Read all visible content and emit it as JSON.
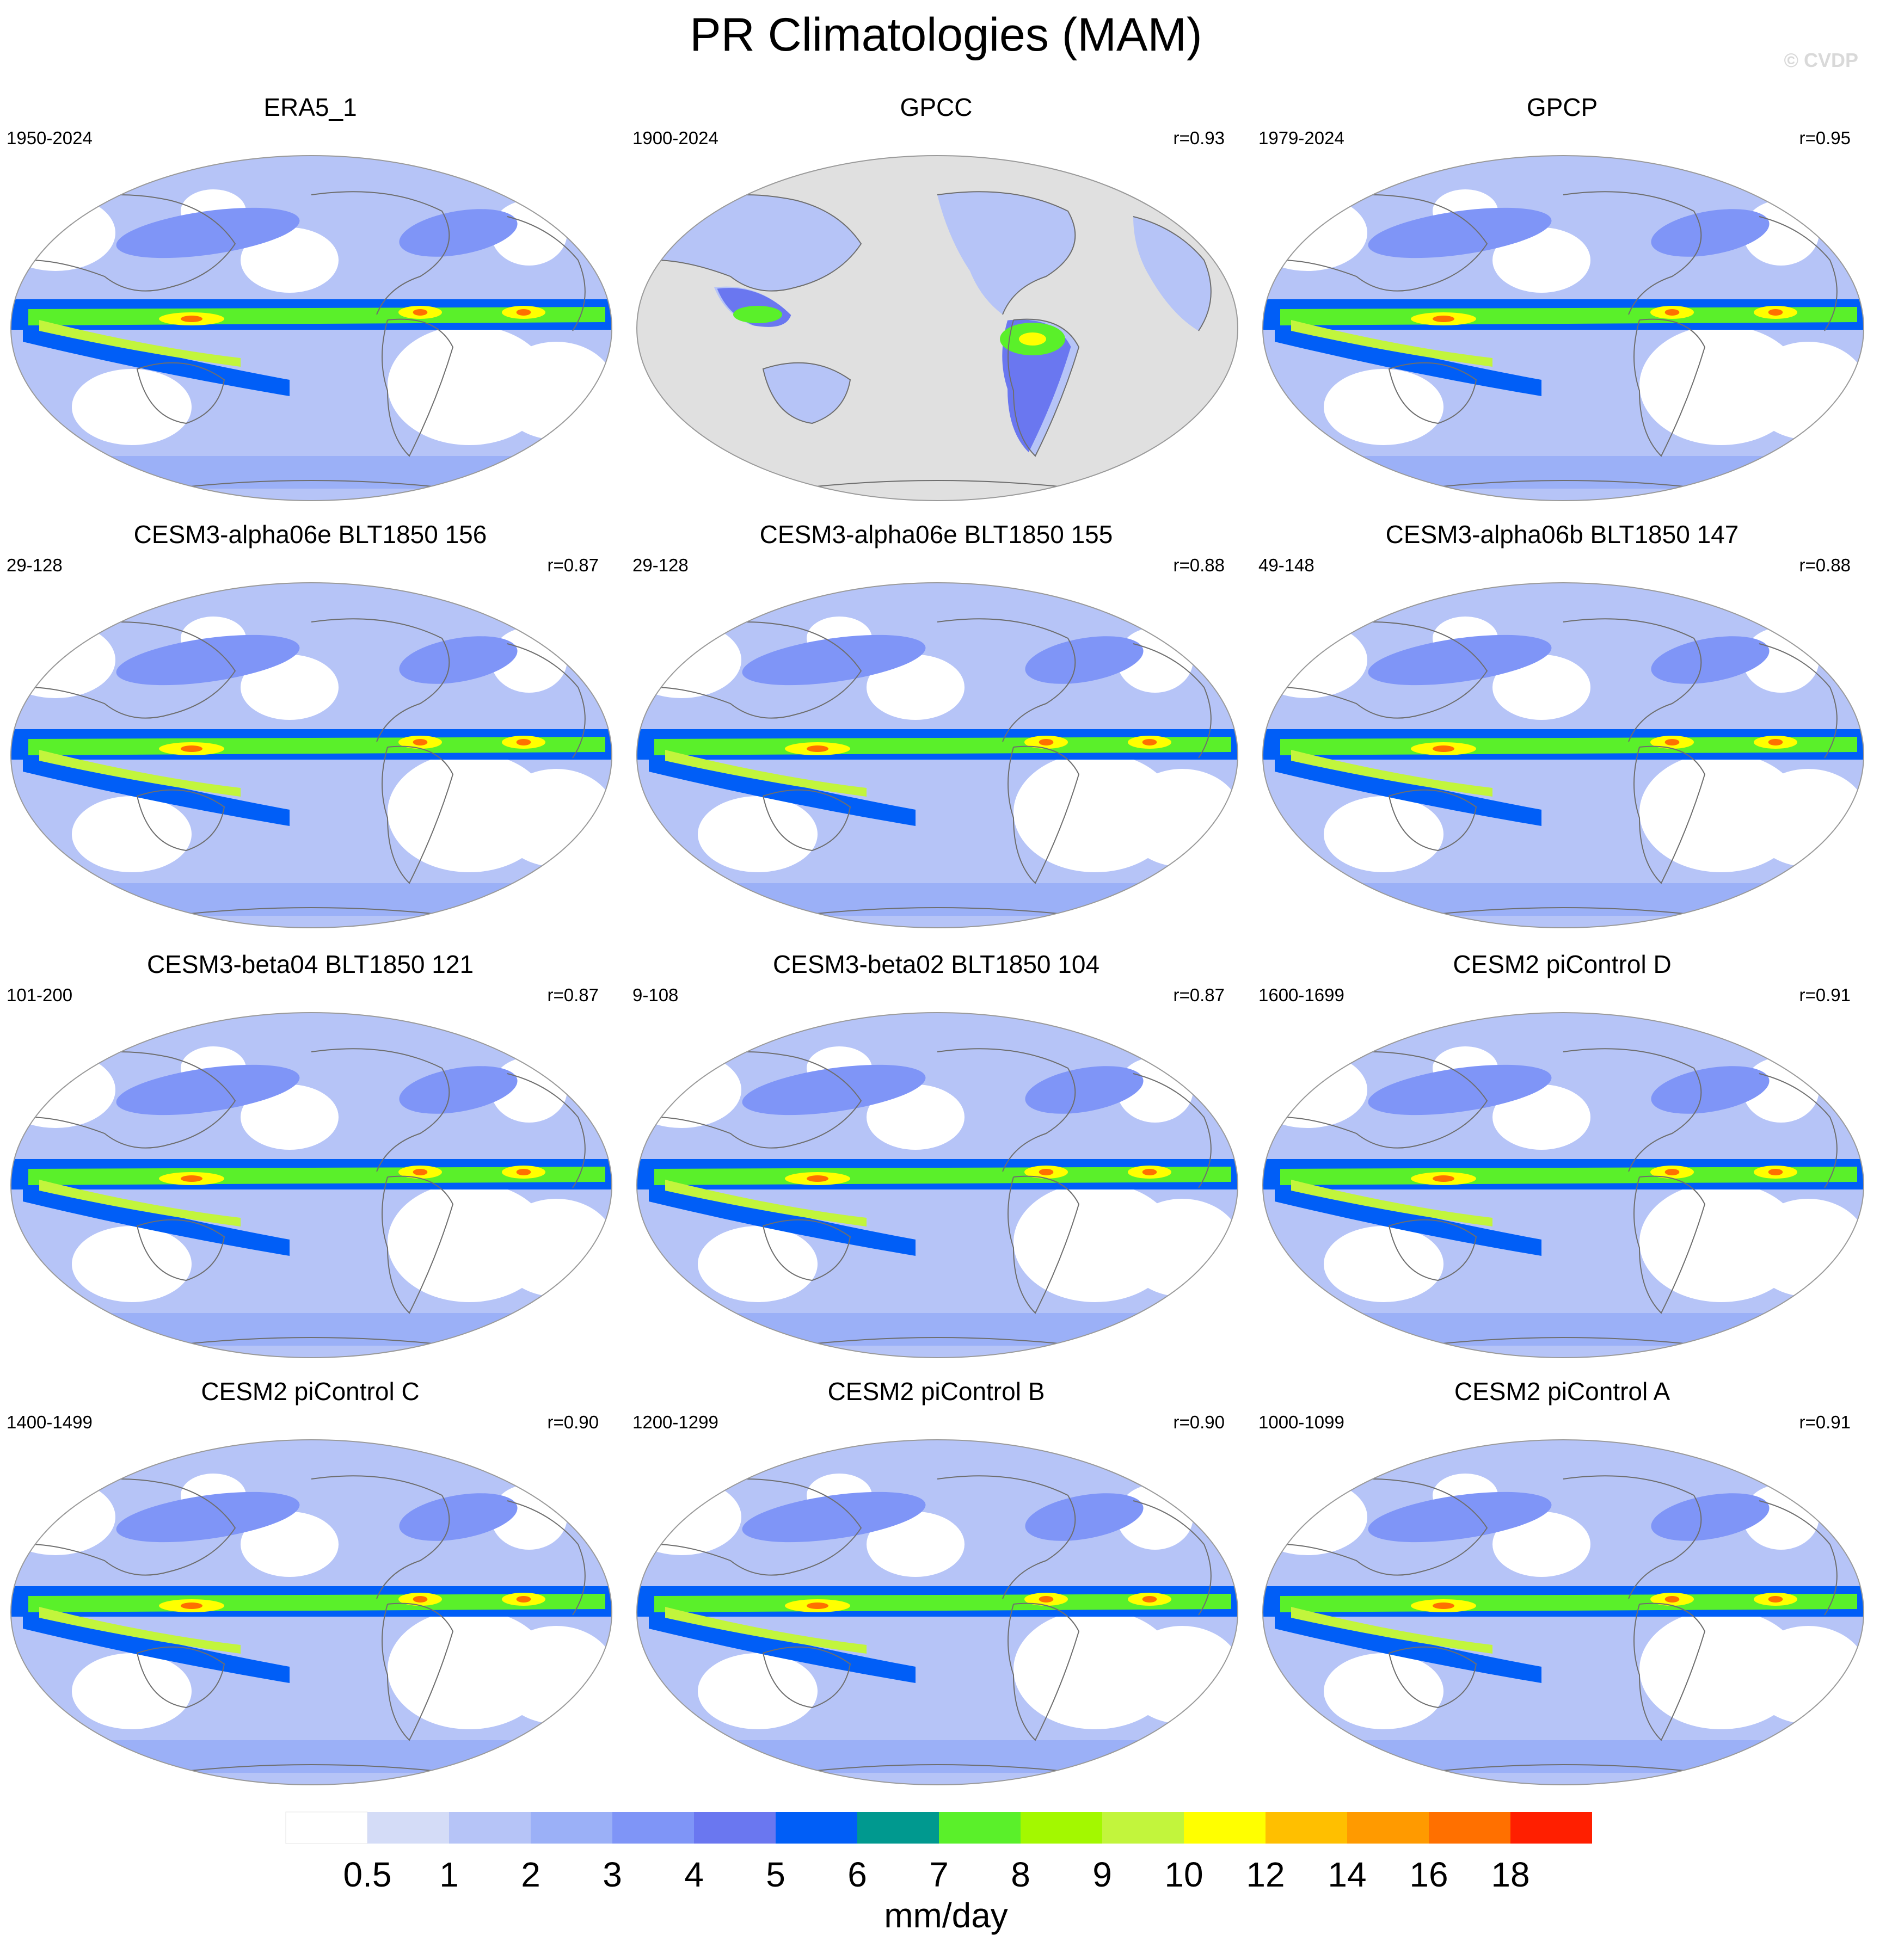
{
  "title": "PR Climatologies (MAM)",
  "watermark": "© CVDP",
  "panels": [
    {
      "title": "ERA5_1",
      "period": "1950-2024",
      "r": "",
      "kind": "reanalysis"
    },
    {
      "title": "GPCC",
      "period": "1900-2024",
      "r": "r=0.93",
      "kind": "land"
    },
    {
      "title": "GPCP",
      "period": "1979-2024",
      "r": "r=0.95",
      "kind": "reanalysis"
    },
    {
      "title": "CESM3-alpha06e BLT1850 156",
      "period": "29-128",
      "r": "r=0.87",
      "kind": "model"
    },
    {
      "title": "CESM3-alpha06e BLT1850 155",
      "period": "29-128",
      "r": "r=0.88",
      "kind": "model"
    },
    {
      "title": "CESM3-alpha06b BLT1850 147",
      "period": "49-148",
      "r": "r=0.88",
      "kind": "model"
    },
    {
      "title": "CESM3-beta04 BLT1850 121",
      "period": "101-200",
      "r": "r=0.87",
      "kind": "model"
    },
    {
      "title": "CESM3-beta02 BLT1850 104",
      "period": "9-108",
      "r": "r=0.87",
      "kind": "model"
    },
    {
      "title": "CESM2 piControl D",
      "period": "1600-1699",
      "r": "r=0.91",
      "kind": "model"
    },
    {
      "title": "CESM2 piControl C",
      "period": "1400-1499",
      "r": "r=0.90",
      "kind": "model"
    },
    {
      "title": "CESM2 piControl B",
      "period": "1200-1299",
      "r": "r=0.90",
      "kind": "model"
    },
    {
      "title": "CESM2 piControl A",
      "period": "1000-1099",
      "r": "r=0.91",
      "kind": "model"
    }
  ],
  "colorbar": {
    "units": "mm/day",
    "labels": [
      "0.5",
      "1",
      "2",
      "3",
      "4",
      "5",
      "6",
      "7",
      "8",
      "9",
      "10",
      "12",
      "14",
      "16",
      "18"
    ],
    "colors": [
      "#ffffff",
      "#d4dcf7",
      "#b6c4f7",
      "#9bb0f7",
      "#7f95f7",
      "#6a77f0",
      "#005ef7",
      "#00998f",
      "#5af02a",
      "#a3f800",
      "#c2f53c",
      "#ffff00",
      "#ffbf00",
      "#ff9a00",
      "#ff7000",
      "#ff1f00"
    ]
  },
  "colors": {
    "ocean_land_mask": "#e0e0e0",
    "coastline": "#6e6e6e"
  }
}
